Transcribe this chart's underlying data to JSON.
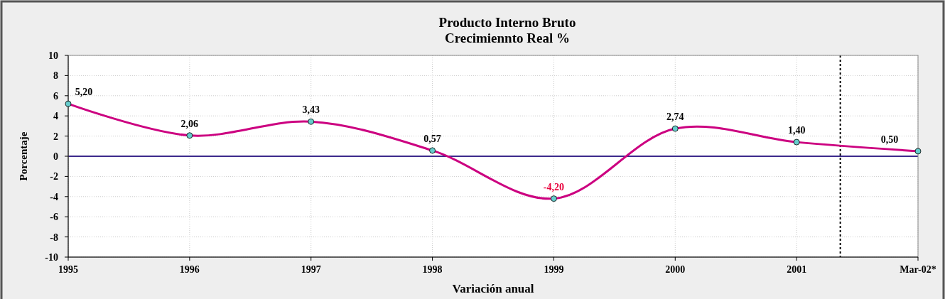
{
  "chart_data": {
    "type": "line",
    "title": "Producto Interno Bruto\nCrecimiennto Real %",
    "xlabel": "Variación anual",
    "ylabel": "Porcentaje",
    "x": [
      1995,
      1996,
      1997,
      1998,
      1999,
      2000,
      2001,
      2002
    ],
    "xlim": [
      1995,
      2002
    ],
    "xticks": [
      1995,
      1996,
      1997,
      1998,
      1999,
      2000,
      2001,
      {
        "value": 2002,
        "label": "Mar-02*"
      }
    ],
    "ylim": [
      -10,
      10
    ],
    "yticks": [
      -10,
      -8,
      -6,
      -4,
      -2,
      0,
      2,
      4,
      6,
      8,
      10
    ],
    "series": [
      {
        "color": "#cc0080",
        "values": [
          5.2,
          2.06,
          3.43,
          0.57,
          -4.2,
          2.74,
          1.4,
          0.5
        ],
        "value_labels": [
          "5,20",
          "2,06",
          "3,43",
          "0,57",
          "-4,20",
          "2,74",
          "1,40",
          "0,50"
        ]
      }
    ],
    "marker": "circle",
    "grid": true,
    "ref_lines": [
      {
        "axis": "y",
        "value": 0,
        "color": "#3c2a8c"
      },
      {
        "axis": "x",
        "value": 2001.36,
        "color": "#000000",
        "line_style": "dotted"
      }
    ]
  }
}
